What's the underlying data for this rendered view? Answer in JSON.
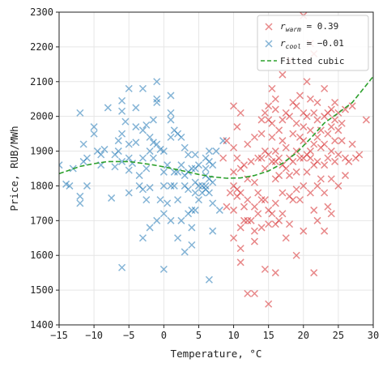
{
  "chart_data": {
    "type": "scatter",
    "xlabel": "Temperature, °C",
    "ylabel": "Price, RUB/MWh",
    "xlim": [
      -15,
      30
    ],
    "ylim": [
      1400,
      2300
    ],
    "xticks": [
      -15,
      -10,
      -5,
      0,
      5,
      10,
      15,
      20,
      25,
      30
    ],
    "yticks": [
      1400,
      1500,
      1600,
      1700,
      1800,
      1900,
      2000,
      2100,
      2200,
      2300
    ],
    "grid": true,
    "legend_position": "top-right",
    "legend": [
      {
        "key": "warm",
        "prefix": "r",
        "subscript": "warm",
        "text": " = 0.39",
        "marker": "x",
        "color": "#d62728"
      },
      {
        "key": "cool",
        "prefix": "r",
        "subscript": "cool",
        "text": " = −0.01",
        "marker": "x",
        "color": "#1f77b4"
      },
      {
        "key": "fit",
        "label": "Fitted cubic",
        "marker": "dashed-line",
        "color": "#2ca02c"
      }
    ],
    "series": [
      {
        "key": "cool",
        "color": "#1f77b4",
        "points": [
          [
            -15,
            1860
          ],
          [
            -14,
            1805
          ],
          [
            -13.5,
            1800
          ],
          [
            -13,
            1850
          ],
          [
            -12,
            1770
          ],
          [
            -12,
            1750
          ],
          [
            -11.5,
            1870
          ],
          [
            -11.5,
            1920
          ],
          [
            -12,
            2010
          ],
          [
            -11,
            1800
          ],
          [
            -11,
            1880
          ],
          [
            -10,
            1950
          ],
          [
            -10,
            1970
          ],
          [
            -9.5,
            1900
          ],
          [
            -9,
            1890
          ],
          [
            -9,
            1860
          ],
          [
            -8.5,
            1905
          ],
          [
            -8,
            2025
          ],
          [
            -7.5,
            1765
          ],
          [
            -7,
            1890
          ],
          [
            -7,
            1855
          ],
          [
            -6.5,
            1930
          ],
          [
            -6.5,
            1900
          ],
          [
            -6,
            2045
          ],
          [
            -6,
            2015
          ],
          [
            -6,
            1950
          ],
          [
            -6,
            1870
          ],
          [
            -6,
            1565
          ],
          [
            -5.5,
            1985
          ],
          [
            -5,
            1920
          ],
          [
            -5,
            1880
          ],
          [
            -5,
            1845
          ],
          [
            -5,
            1780
          ],
          [
            -5,
            2080
          ],
          [
            -4.5,
            1865
          ],
          [
            -4,
            2025
          ],
          [
            -4,
            1970
          ],
          [
            -4,
            1925
          ],
          [
            -3.5,
            1830
          ],
          [
            -3.5,
            1800
          ],
          [
            -3,
            2080
          ],
          [
            -3,
            1960
          ],
          [
            -3,
            1880
          ],
          [
            -3,
            1790
          ],
          [
            -3,
            1650
          ],
          [
            -2.5,
            1975
          ],
          [
            -2.5,
            1850
          ],
          [
            -2.5,
            1760
          ],
          [
            -2,
            1940
          ],
          [
            -2,
            1900
          ],
          [
            -2,
            1795
          ],
          [
            -2,
            1680
          ],
          [
            -1.5,
            1990
          ],
          [
            -1.5,
            1925
          ],
          [
            -1.5,
            1880
          ],
          [
            -1,
            2100
          ],
          [
            -1,
            2050
          ],
          [
            -1,
            2040
          ],
          [
            -1,
            1920
          ],
          [
            -1,
            1700
          ],
          [
            -0.5,
            1905
          ],
          [
            -0.5,
            1760
          ],
          [
            0,
            1900
          ],
          [
            0,
            1840
          ],
          [
            0,
            1800
          ],
          [
            0,
            1720
          ],
          [
            0,
            1560
          ],
          [
            0.5,
            1860
          ],
          [
            0.5,
            1750
          ],
          [
            1,
            2060
          ],
          [
            1,
            2010
          ],
          [
            1,
            1990
          ],
          [
            1,
            1940
          ],
          [
            1,
            1800
          ],
          [
            1,
            1700
          ],
          [
            1.5,
            1960
          ],
          [
            1.5,
            1840
          ],
          [
            1.5,
            1800
          ],
          [
            2,
            1950
          ],
          [
            2,
            1840
          ],
          [
            2,
            1760
          ],
          [
            2,
            1650
          ],
          [
            2.5,
            1940
          ],
          [
            2.5,
            1860
          ],
          [
            2.5,
            1700
          ],
          [
            3,
            1910
          ],
          [
            3,
            1830
          ],
          [
            3,
            1800
          ],
          [
            3,
            1610
          ],
          [
            3.5,
            1890
          ],
          [
            3.5,
            1840
          ],
          [
            3.5,
            1790
          ],
          [
            3.5,
            1720
          ],
          [
            4,
            1850
          ],
          [
            4,
            1680
          ],
          [
            4,
            1730
          ],
          [
            4,
            1630
          ],
          [
            4.5,
            1890
          ],
          [
            4.5,
            1850
          ],
          [
            4.5,
            1810
          ],
          [
            4.5,
            1780
          ],
          [
            4.5,
            1730
          ],
          [
            5,
            1860
          ],
          [
            5,
            1800
          ],
          [
            5,
            1760
          ],
          [
            5.5,
            1800
          ],
          [
            5.5,
            1780
          ],
          [
            6,
            1880
          ],
          [
            6,
            1850
          ],
          [
            6,
            1830
          ],
          [
            6,
            1800
          ],
          [
            6,
            1790
          ],
          [
            6.5,
            1900
          ],
          [
            6.5,
            1870
          ],
          [
            6.5,
            1820
          ],
          [
            6.5,
            1780
          ],
          [
            6.5,
            1530
          ],
          [
            7,
            1860
          ],
          [
            7,
            1810
          ],
          [
            7,
            1670
          ],
          [
            7,
            1750
          ],
          [
            7.5,
            1900
          ],
          [
            8,
            1730
          ],
          [
            8.5,
            1930
          ]
        ]
      },
      {
        "key": "warm",
        "color": "#d62728",
        "points": [
          [
            8.5,
            1880
          ],
          [
            9,
            1930
          ],
          [
            9,
            1740
          ],
          [
            9.5,
            1780
          ],
          [
            10,
            1800
          ],
          [
            10,
            2030
          ],
          [
            10,
            1910
          ],
          [
            10,
            1730
          ],
          [
            10,
            1650
          ],
          [
            10,
            1840
          ],
          [
            10.5,
            1970
          ],
          [
            10.5,
            1880
          ],
          [
            10.5,
            1790
          ],
          [
            10.5,
            1770
          ],
          [
            11,
            2010
          ],
          [
            11,
            1850
          ],
          [
            11,
            1780
          ],
          [
            11,
            1680
          ],
          [
            11,
            1620
          ],
          [
            11,
            1580
          ],
          [
            11.5,
            1860
          ],
          [
            11.5,
            1740
          ],
          [
            11.5,
            1700
          ],
          [
            12,
            1920
          ],
          [
            12,
            1820
          ],
          [
            12,
            1760
          ],
          [
            12,
            1700
          ],
          [
            12,
            1490
          ],
          [
            12.5,
            1870
          ],
          [
            12.5,
            1700
          ],
          [
            13,
            1940
          ],
          [
            13,
            1810
          ],
          [
            13,
            1740
          ],
          [
            13,
            1670
          ],
          [
            13,
            1640
          ],
          [
            13,
            1490
          ],
          [
            13.5,
            1880
          ],
          [
            13.5,
            1780
          ],
          [
            13.5,
            1720
          ],
          [
            14,
            1990
          ],
          [
            14,
            1950
          ],
          [
            14,
            1880
          ],
          [
            14,
            1760
          ],
          [
            14,
            1680
          ],
          [
            14.5,
            2010
          ],
          [
            14.5,
            1900
          ],
          [
            14.5,
            1850
          ],
          [
            14.5,
            1760
          ],
          [
            14.5,
            1560
          ],
          [
            15,
            2030
          ],
          [
            15,
            1990
          ],
          [
            15,
            1890
          ],
          [
            15,
            1730
          ],
          [
            15,
            1690
          ],
          [
            15,
            1460
          ],
          [
            15.5,
            2080
          ],
          [
            15.5,
            1980
          ],
          [
            15.5,
            1940
          ],
          [
            15.5,
            1870
          ],
          [
            15.5,
            1720
          ],
          [
            16,
            2050
          ],
          [
            16,
            2020
          ],
          [
            16,
            1900
          ],
          [
            16,
            1870
          ],
          [
            16,
            1820
          ],
          [
            16,
            1750
          ],
          [
            16,
            1690
          ],
          [
            16,
            1550
          ],
          [
            16.5,
            1960
          ],
          [
            16.5,
            1880
          ],
          [
            16.5,
            1830
          ],
          [
            16.5,
            1700
          ],
          [
            17,
            2120
          ],
          [
            17,
            1990
          ],
          [
            17,
            1930
          ],
          [
            17,
            1860
          ],
          [
            17,
            1780
          ],
          [
            17,
            1720
          ],
          [
            17.5,
            2010
          ],
          [
            17.5,
            1910
          ],
          [
            17.5,
            1850
          ],
          [
            17.5,
            1650
          ],
          [
            18,
            2160
          ],
          [
            18,
            2000
          ],
          [
            18,
            1880
          ],
          [
            18,
            1830
          ],
          [
            18,
            1770
          ],
          [
            18,
            1690
          ],
          [
            18.5,
            2040
          ],
          [
            18.5,
            1950
          ],
          [
            18.5,
            1870
          ],
          [
            18.5,
            1760
          ],
          [
            19,
            2030
          ],
          [
            19,
            1980
          ],
          [
            19,
            1900
          ],
          [
            19,
            1840
          ],
          [
            19,
            1790
          ],
          [
            19,
            1600
          ],
          [
            19.5,
            2060
          ],
          [
            19.5,
            1940
          ],
          [
            19.5,
            1880
          ],
          [
            19.5,
            1760
          ],
          [
            20,
            2290
          ],
          [
            20,
            2010
          ],
          [
            20,
            1970
          ],
          [
            20,
            1930
          ],
          [
            20,
            1880
          ],
          [
            20,
            1800
          ],
          [
            20,
            1670
          ],
          [
            20.5,
            2100
          ],
          [
            20.5,
            2000
          ],
          [
            20.5,
            1890
          ],
          [
            20.5,
            1840
          ],
          [
            21,
            2210
          ],
          [
            21,
            2050
          ],
          [
            21,
            1960
          ],
          [
            21,
            1900
          ],
          [
            21,
            1880
          ],
          [
            21,
            1780
          ],
          [
            21.5,
            2180
          ],
          [
            21.5,
            2010
          ],
          [
            21.5,
            1920
          ],
          [
            21.5,
            1860
          ],
          [
            21.5,
            1730
          ],
          [
            21.5,
            1550
          ],
          [
            22,
            2040
          ],
          [
            22,
            1990
          ],
          [
            22,
            1940
          ],
          [
            22,
            1870
          ],
          [
            22,
            1800
          ],
          [
            22,
            1700
          ],
          [
            22.5,
            1960
          ],
          [
            22.5,
            1910
          ],
          [
            22.5,
            1820
          ],
          [
            23,
            2080
          ],
          [
            23,
            2000
          ],
          [
            23,
            1920
          ],
          [
            23,
            1860
          ],
          [
            23,
            1780
          ],
          [
            23,
            1670
          ],
          [
            23.5,
            2010
          ],
          [
            23.5,
            1950
          ],
          [
            23.5,
            1880
          ],
          [
            23.5,
            1740
          ],
          [
            24,
            2020
          ],
          [
            24,
            1970
          ],
          [
            24,
            1900
          ],
          [
            24,
            1820
          ],
          [
            24,
            1720
          ],
          [
            24.5,
            2040
          ],
          [
            24.5,
            1990
          ],
          [
            24.5,
            1930
          ],
          [
            24.5,
            1870
          ],
          [
            25,
            2010
          ],
          [
            25,
            1960
          ],
          [
            25,
            1890
          ],
          [
            25,
            1800
          ],
          [
            25.5,
            1980
          ],
          [
            25.5,
            1930
          ],
          [
            26,
            2020
          ],
          [
            26,
            1880
          ],
          [
            26,
            1830
          ],
          [
            26.5,
            1870
          ],
          [
            27,
            1920
          ],
          [
            27,
            2030
          ],
          [
            27.5,
            1880
          ],
          [
            28,
            1890
          ],
          [
            29,
            1990
          ]
        ]
      },
      {
        "key": "fit",
        "type": "line",
        "style": "dashed",
        "color": "#2ca02c",
        "points": [
          [
            -15,
            1835
          ],
          [
            -12,
            1856
          ],
          [
            -10,
            1864
          ],
          [
            -8,
            1870
          ],
          [
            -5,
            1870
          ],
          [
            -2,
            1862
          ],
          [
            0,
            1855
          ],
          [
            3,
            1842
          ],
          [
            5,
            1833
          ],
          [
            7,
            1826
          ],
          [
            9,
            1822
          ],
          [
            11,
            1823
          ],
          [
            13,
            1830
          ],
          [
            15,
            1843
          ],
          [
            17,
            1865
          ],
          [
            19,
            1895
          ],
          [
            21,
            1936
          ],
          [
            23,
            1981
          ],
          [
            25,
            2010
          ],
          [
            27,
            2040
          ],
          [
            29,
            2090
          ],
          [
            30,
            2115
          ]
        ]
      }
    ]
  }
}
